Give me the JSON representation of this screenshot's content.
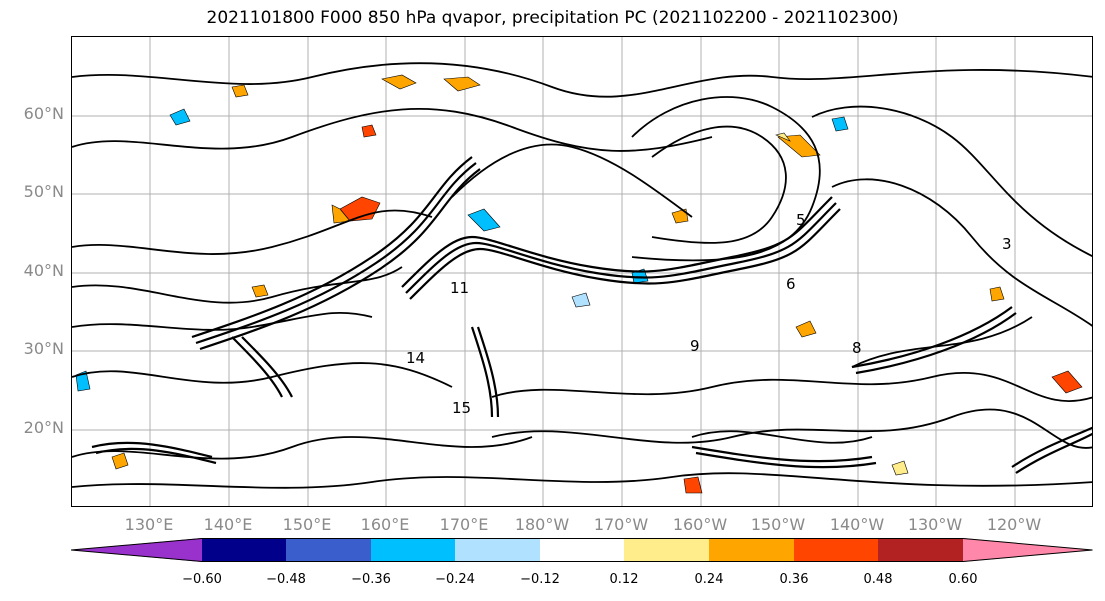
{
  "title": "2021101800 F000 850 hPa qvapor, precipitation PC (2021102200 - 2021102300)",
  "lat_labels": [
    "60°N",
    "50°N",
    "40°N",
    "30°N",
    "20°N"
  ],
  "lon_labels": [
    "130°E",
    "140°E",
    "150°E",
    "160°E",
    "170°E",
    "180°W",
    "170°W",
    "160°W",
    "150°W",
    "140°W",
    "130°W",
    "120°W"
  ],
  "colorbar": {
    "ticks": [
      "−0.60",
      "−0.48",
      "−0.36",
      "−0.24",
      "−0.12",
      "0.12",
      "0.24",
      "0.36",
      "0.48",
      "0.60"
    ],
    "colors": [
      "#9932cc",
      "#00008b",
      "#3a5fcd",
      "#00bfff",
      "#b0e2ff",
      "#ffffff",
      "#ffec8b",
      "#ffa500",
      "#ff4500",
      "#b22222",
      "#ff88aa"
    ]
  },
  "contour_labels": [
    "5",
    "6",
    "8",
    "9",
    "14",
    "15",
    "11",
    "3"
  ]
}
